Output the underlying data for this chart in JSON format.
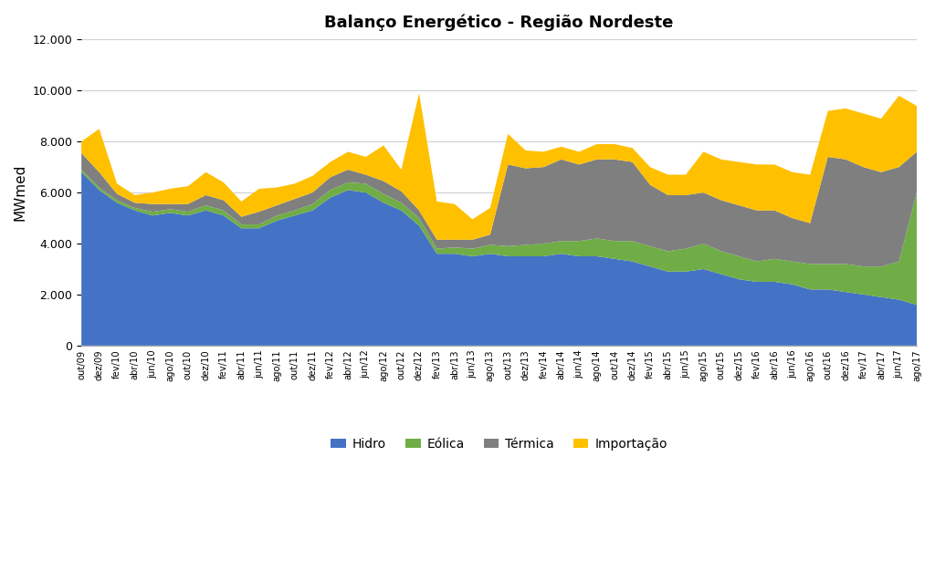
{
  "title": "Balanço Energético - Região Nordeste",
  "ylabel": "MWmed",
  "ylim": [
    0,
    12000
  ],
  "yticks": [
    0,
    2000,
    4000,
    6000,
    8000,
    10000,
    12000
  ],
  "colors": {
    "hidro": "#4472C4",
    "eolica": "#70AD47",
    "termica": "#7F7F7F",
    "importacao": "#FFC000"
  },
  "legend_labels": [
    "Hidro",
    "Eólica",
    "Térmica",
    "Importação"
  ],
  "background_color": "#FFFFFF",
  "tick_labels": [
    "out/09",
    "dez/09",
    "fev/10",
    "abr/10",
    "jun/10",
    "ago/10",
    "out/10",
    "dez/10",
    "fev/11",
    "abr/11",
    "jun/11",
    "ago/11",
    "out/11",
    "dez/11",
    "fev/12",
    "abr/12",
    "jun/12",
    "ago/12",
    "out/12",
    "dez/12",
    "fev/13",
    "abr/13",
    "jun/13",
    "ago/13",
    "out/13",
    "dez/13",
    "fev/14",
    "abr/14",
    "jun/14",
    "ago/14",
    "out/14",
    "dez/14",
    "fev/15",
    "abr/15",
    "jun/15",
    "ago/15",
    "out/15",
    "dez/15",
    "fev/16",
    "abr/16",
    "jun/16",
    "ago/16",
    "out/16",
    "dez/16",
    "fev/17",
    "abr/17",
    "jun/17",
    "ago/17"
  ],
  "hidro": [
    6800,
    6100,
    5600,
    5300,
    5100,
    5200,
    5100,
    5300,
    5100,
    4600,
    4600,
    4900,
    5100,
    5300,
    5800,
    6100,
    6000,
    5600,
    5300,
    4700,
    3600,
    3600,
    3500,
    3600,
    3500,
    3500,
    3500,
    3600,
    3500,
    3500,
    3400,
    3300,
    3100,
    2900,
    2900,
    3000,
    2800,
    2600,
    2500,
    2500,
    2400,
    2200,
    2200,
    2100,
    2000,
    1900,
    1800,
    1600
  ],
  "eolica": [
    100,
    100,
    100,
    100,
    150,
    150,
    150,
    200,
    200,
    150,
    150,
    200,
    200,
    250,
    300,
    300,
    350,
    350,
    300,
    300,
    200,
    250,
    300,
    350,
    400,
    450,
    500,
    500,
    600,
    700,
    700,
    800,
    800,
    800,
    900,
    1000,
    900,
    900,
    800,
    900,
    900,
    1000,
    1000,
    1100,
    1100,
    1200,
    1500,
    4400
  ],
  "termica": [
    650,
    600,
    250,
    200,
    300,
    200,
    300,
    400,
    400,
    300,
    500,
    400,
    450,
    450,
    500,
    500,
    350,
    500,
    450,
    300,
    350,
    300,
    350,
    400,
    3200,
    3000,
    3000,
    3200,
    3000,
    3100,
    3200,
    3100,
    2400,
    2200,
    2100,
    2000,
    2000,
    2000,
    2000,
    1900,
    1700,
    1600,
    4200,
    4100,
    3900,
    3700,
    3700,
    1600
  ],
  "importacao": [
    450,
    1700,
    400,
    300,
    450,
    600,
    700,
    900,
    700,
    600,
    900,
    700,
    600,
    650,
    600,
    700,
    700,
    1400,
    850,
    4600,
    1500,
    1400,
    800,
    1050,
    1200,
    700,
    600,
    500,
    500,
    600,
    600,
    550,
    700,
    800,
    800,
    1600,
    1600,
    1700,
    1800,
    1800,
    1800,
    1900,
    1800,
    2000,
    2100,
    2100,
    2800,
    1800
  ]
}
